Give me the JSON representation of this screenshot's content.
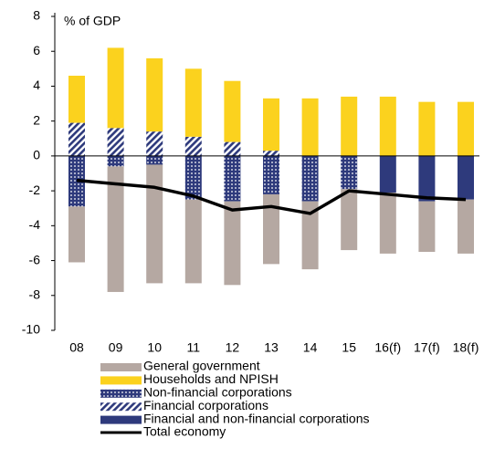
{
  "chart_data": {
    "type": "bar",
    "stacked": true,
    "y_label": "% of GDP",
    "categories": [
      "08",
      "09",
      "10",
      "11",
      "12",
      "13",
      "14",
      "15",
      "16(f)",
      "17(f)",
      "18(f)"
    ],
    "ylim": [
      -10,
      8
    ],
    "yticks": [
      -10,
      -8,
      -6,
      -4,
      -2,
      0,
      2,
      4,
      6,
      8
    ],
    "series": [
      {
        "name": "General government",
        "color": "#b5a8a2",
        "values": [
          -3.2,
          -7.2,
          -6.8,
          -4.8,
          -4.8,
          -4.0,
          -3.9,
          -3.5,
          -3.5,
          -2.9,
          -3.1
        ]
      },
      {
        "name": "Households and NPISH",
        "color": "#fbd21e",
        "values": [
          2.7,
          4.6,
          4.2,
          3.9,
          3.5,
          3.0,
          3.3,
          3.4,
          3.4,
          3.1,
          3.1
        ]
      },
      {
        "name": "Non-financial corporations",
        "color": "#2e3a7c",
        "pattern": "dots",
        "values": [
          -2.9,
          -0.6,
          -0.5,
          -2.5,
          -2.6,
          -2.2,
          -2.6,
          -1.9,
          null,
          null,
          null
        ]
      },
      {
        "name": "Financial corporations",
        "color": "#2e3a7c",
        "pattern": "hatch",
        "values": [
          1.9,
          1.6,
          1.4,
          1.1,
          0.8,
          0.3,
          null,
          null,
          null,
          null,
          null
        ]
      },
      {
        "name": "Financial and non-financial corporations",
        "color": "#2e3a7c",
        "values": [
          null,
          null,
          null,
          null,
          null,
          null,
          null,
          null,
          -2.1,
          -2.6,
          -2.5
        ]
      },
      {
        "name": "Total economy",
        "type": "line",
        "color": "#000000",
        "values": [
          -1.4,
          -1.6,
          -1.8,
          -2.3,
          -3.1,
          -2.9,
          -3.3,
          -2.0,
          -2.2,
          -2.4,
          -2.5
        ]
      }
    ]
  }
}
